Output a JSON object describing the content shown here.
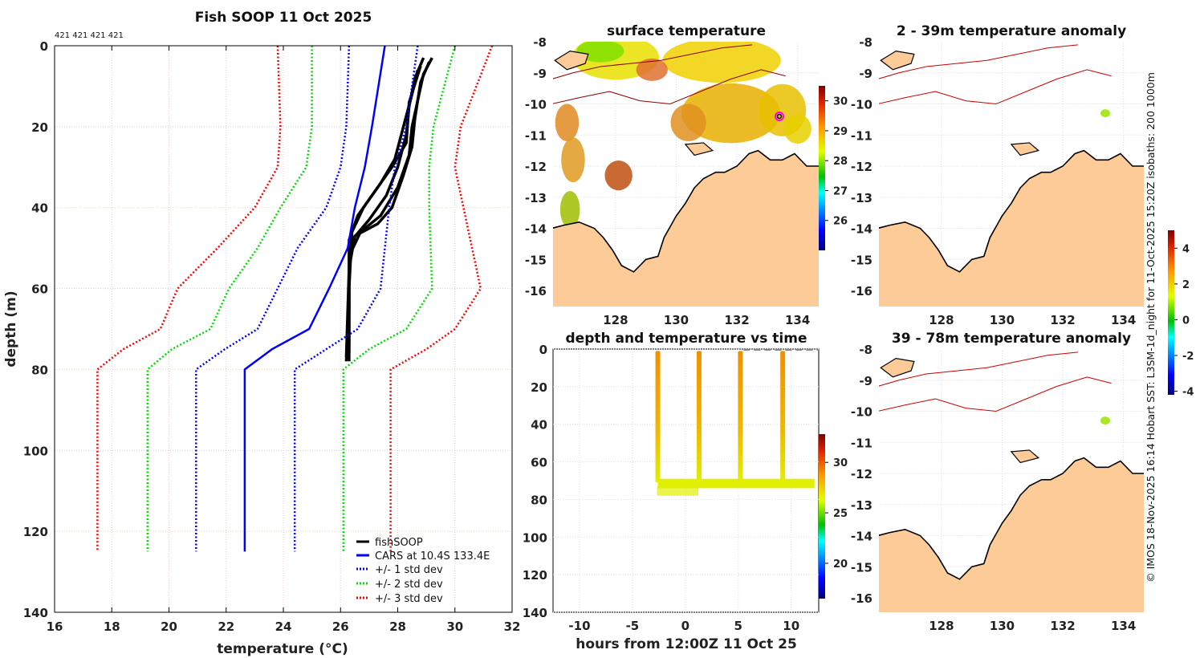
{
  "credit": "© IMOS 18-Nov-2025 16:14 Hobart SST: L3SM-1d_night for 11-Oct-2025 15:20Z isobaths: 200  1000m",
  "chart_data": [
    {
      "type": "line",
      "title": "Fish SOOP 11 Oct 2025",
      "subtitle": "421 421 421 421",
      "xlabel": "temperature (°C)",
      "xlabel_main": "temperature (",
      "xlabel_sup": "o",
      "xlabel_end": "C)",
      "ylabel": "depth (m)",
      "xlim": [
        16,
        32
      ],
      "ylim": [
        140,
        0
      ],
      "xticks": [
        "16",
        "18",
        "20",
        "22",
        "24",
        "26",
        "28",
        "30",
        "32"
      ],
      "yticks": [
        "0",
        "20",
        "40",
        "60",
        "80",
        "100",
        "120",
        "140"
      ],
      "grid": true,
      "legend_position": "bottom-right",
      "series": [
        {
          "name": "fishSOOP",
          "color": "#000000",
          "style": "solid",
          "lines": [
            [
              [
                28.9,
                3
              ],
              [
                28.6,
                8
              ],
              [
                28.4,
                15
              ],
              [
                28.3,
                22
              ],
              [
                28.0,
                30
              ],
              [
                27.6,
                37
              ],
              [
                27.0,
                43
              ],
              [
                26.4,
                48
              ],
              [
                26.3,
                55
              ],
              [
                26.3,
                78
              ]
            ],
            [
              [
                29.1,
                4
              ],
              [
                28.8,
                9
              ],
              [
                28.6,
                18
              ],
              [
                28.5,
                25
              ],
              [
                28.2,
                32
              ],
              [
                27.8,
                40
              ],
              [
                27.3,
                44
              ],
              [
                26.5,
                47
              ],
              [
                26.3,
                55
              ],
              [
                26.2,
                77
              ]
            ],
            [
              [
                28.7,
                6
              ],
              [
                28.5,
                12
              ],
              [
                28.2,
                20
              ],
              [
                27.9,
                28
              ],
              [
                27.4,
                34
              ],
              [
                26.8,
                40
              ],
              [
                26.4,
                46
              ],
              [
                26.3,
                60
              ],
              [
                26.3,
                76
              ]
            ],
            [
              [
                28.8,
                5
              ],
              [
                28.4,
                14
              ],
              [
                28.3,
                24
              ],
              [
                27.8,
                30
              ],
              [
                27.2,
                36
              ],
              [
                26.6,
                42
              ],
              [
                26.3,
                48
              ],
              [
                26.3,
                65
              ],
              [
                26.2,
                78
              ]
            ],
            [
              [
                29.2,
                3
              ],
              [
                28.9,
                7
              ],
              [
                28.5,
                20
              ],
              [
                28.4,
                27
              ],
              [
                28.0,
                35
              ],
              [
                27.4,
                42
              ],
              [
                26.7,
                46
              ],
              [
                26.3,
                52
              ],
              [
                26.3,
                74
              ]
            ]
          ]
        },
        {
          "name": "CARS at 10.4S 133.4E",
          "color": "#0000ff",
          "style": "solid",
          "points": [
            [
              27.55,
              0
            ],
            [
              27.1,
              20
            ],
            [
              26.85,
              30
            ],
            [
              26.5,
              40
            ],
            [
              26.25,
              50
            ],
            [
              25.6,
              60
            ],
            [
              24.9,
              70
            ],
            [
              23.6,
              75
            ],
            [
              22.65,
              80
            ],
            [
              22.65,
              125
            ]
          ]
        },
        {
          "name": "+/- 1 std dev",
          "color": "#0000ff",
          "style": "dotted",
          "lines": [
            [
              [
                28.7,
                0
              ],
              [
                28.3,
                20
              ],
              [
                27.9,
                30
              ],
              [
                27.7,
                40
              ],
              [
                27.55,
                50
              ],
              [
                27.4,
                60
              ],
              [
                26.6,
                70
              ],
              [
                25.5,
                75
              ],
              [
                24.4,
                80
              ],
              [
                24.4,
                125
              ]
            ],
            [
              [
                26.3,
                0
              ],
              [
                26.2,
                20
              ],
              [
                26.0,
                30
              ],
              [
                25.5,
                40
              ],
              [
                24.5,
                50
              ],
              [
                23.8,
                60
              ],
              [
                23.1,
                70
              ],
              [
                21.95,
                75
              ],
              [
                20.95,
                80
              ],
              [
                20.95,
                125
              ]
            ]
          ]
        },
        {
          "name": "+/- 2 std dev",
          "color": "#00dd00",
          "style": "dotted",
          "lines": [
            [
              [
                30.0,
                0
              ],
              [
                29.25,
                20
              ],
              [
                29.1,
                30
              ],
              [
                29.1,
                40
              ],
              [
                29.2,
                60
              ],
              [
                28.3,
                70
              ],
              [
                27.0,
                75
              ],
              [
                26.1,
                80
              ],
              [
                26.1,
                125
              ]
            ],
            [
              [
                25.0,
                0
              ],
              [
                25.0,
                20
              ],
              [
                24.8,
                30
              ],
              [
                23.9,
                40
              ],
              [
                23.1,
                50
              ],
              [
                22.1,
                60
              ],
              [
                21.45,
                70
              ],
              [
                20.1,
                75
              ],
              [
                19.25,
                80
              ],
              [
                19.25,
                125
              ]
            ]
          ]
        },
        {
          "name": "+/- 3 std dev",
          "color": "#ff0000",
          "style": "dotted",
          "lines": [
            [
              [
                31.3,
                0
              ],
              [
                30.2,
                20
              ],
              [
                30.0,
                30
              ],
              [
                30.3,
                40
              ],
              [
                30.9,
                60
              ],
              [
                30.0,
                70
              ],
              [
                29.0,
                75
              ],
              [
                27.75,
                80
              ],
              [
                27.75,
                125
              ]
            ],
            [
              [
                23.8,
                0
              ],
              [
                23.9,
                20
              ],
              [
                23.8,
                30
              ],
              [
                23.0,
                40
              ],
              [
                21.7,
                50
              ],
              [
                20.3,
                60
              ],
              [
                19.7,
                70
              ],
              [
                18.4,
                75
              ],
              [
                17.5,
                80
              ],
              [
                17.5,
                125
              ]
            ]
          ]
        }
      ]
    },
    {
      "type": "scatter",
      "title": "depth and temperature vs time",
      "xlabel": "hours from 12:00Z 11 Oct 25",
      "ylabel": "",
      "xlim": [
        -12.5,
        12.6
      ],
      "ylim": [
        140,
        0
      ],
      "xticks": [
        "-10",
        "-5",
        "0",
        "5",
        "10"
      ],
      "yticks": [
        "0",
        "20",
        "40",
        "60",
        "80",
        "100",
        "120",
        "140"
      ],
      "casts_hours": [
        -2.6,
        1.3,
        5.2,
        9.2
      ],
      "bottom_depth_m": 71,
      "time_range_hours": [
        -2.6,
        12.2
      ],
      "colorbar": {
        "label_ticks": [
          "20",
          "25",
          "30"
        ],
        "range": [
          16.5,
          32.8
        ]
      }
    },
    {
      "type": "heatmap",
      "title": "surface temperature",
      "xticks": [
        "128",
        "130",
        "132",
        "134"
      ],
      "yticks": [
        "-8",
        "-9",
        "-10",
        "-11",
        "-12",
        "-13",
        "-14",
        "-15",
        "-16"
      ],
      "colorbar": {
        "label_ticks": [
          "26",
          "27",
          "28",
          "29",
          "30"
        ],
        "range": [
          25.0,
          30.5
        ]
      },
      "marker_lon_lat": [
        133.4,
        -10.4
      ]
    },
    {
      "type": "heatmap",
      "title": "2 - 39m temperature anomaly",
      "xticks": [
        "128",
        "130",
        "132",
        "134"
      ],
      "yticks": [
        "-8",
        "-9",
        "-10",
        "-11",
        "-12",
        "-13",
        "-14",
        "-15",
        "-16"
      ]
    },
    {
      "type": "heatmap",
      "title": "39 - 78m temperature anomaly",
      "xticks": [
        "128",
        "130",
        "132",
        "134"
      ],
      "yticks": [
        "-8",
        "-9",
        "-10",
        "-11",
        "-12",
        "-13",
        "-14",
        "-15",
        "-16"
      ]
    }
  ],
  "anomaly_colorbar": {
    "label_ticks": [
      "-4",
      "-2",
      "0",
      "2",
      "4"
    ],
    "range": [
      -4.2,
      5.0
    ]
  }
}
